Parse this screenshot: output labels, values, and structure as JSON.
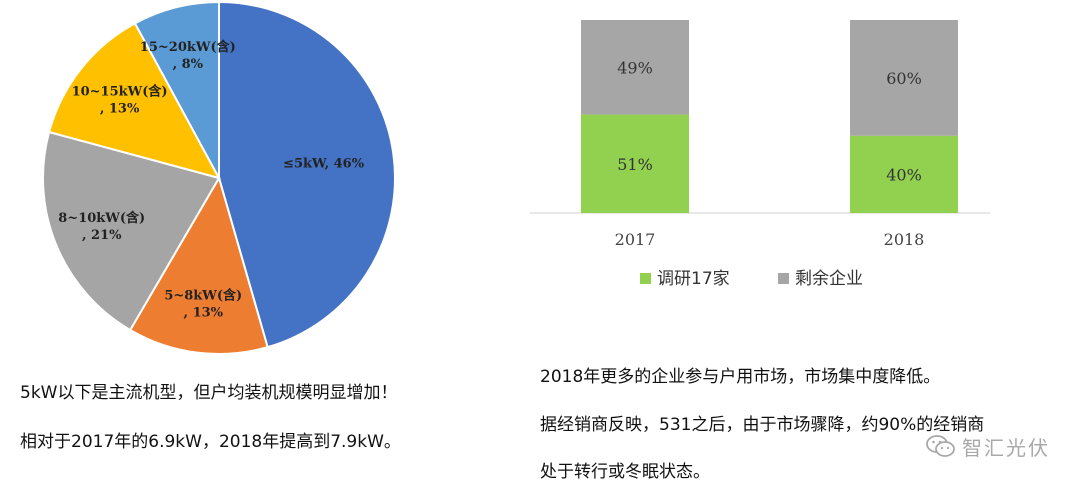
{
  "colors": {
    "blue": "#4472c4",
    "orange": "#ed7d31",
    "gray": "#a5a5a5",
    "yellow": "#ffc000",
    "lightblue": "#5b9bd5",
    "green": "#92d050",
    "bar_gray": "#a6a6a6"
  },
  "chart_data": [
    {
      "type": "pie",
      "slices": [
        {
          "label": "≤5kW, 46%",
          "value": 46,
          "color": "#4472c4"
        },
        {
          "label": "5~8kW(含), 13%",
          "value": 13,
          "color": "#ed7d31"
        },
        {
          "label": "8~10kW(含), 21%",
          "value": 21,
          "color": "#a5a5a5"
        },
        {
          "label": "10~15kW(含), 13%",
          "value": 13,
          "color": "#ffc000"
        },
        {
          "label": "15~20kW(含), 8%",
          "value": 8,
          "color": "#5b9bd5"
        }
      ],
      "label_lines": [
        [
          "≤5kW, 46%"
        ],
        [
          "5~8kW(含)",
          ", 13%"
        ],
        [
          "8~10kW(含)",
          ", 21%"
        ],
        [
          "10~15kW(含)",
          ", 13%"
        ],
        [
          "15~20kW(含)",
          ", 8%"
        ]
      ]
    },
    {
      "type": "bar",
      "stacked": true,
      "categories": [
        "2017",
        "2018"
      ],
      "series": [
        {
          "name": "调研17家",
          "values": [
            51,
            40
          ],
          "labels": [
            "51%",
            "40%"
          ],
          "color": "#92d050"
        },
        {
          "name": "剩余企业",
          "values": [
            49,
            60
          ],
          "labels": [
            "49%",
            "60%"
          ],
          "color": "#a6a6a6"
        }
      ],
      "ylim": [
        0,
        100
      ],
      "legend": "bottom"
    }
  ],
  "captions": {
    "left_line1": "5kW以下是主流机型，但户均装机规模明显增加！",
    "left_line2": "相对于2017年的6.9kW，2018年提高到7.9kW。",
    "right_line1": "2018年更多的企业参与户用市场，市场集中度降低。",
    "right_line2": "据经销商反映，531之后，由于市场骤降，约90%的经销商",
    "right_line3": "处于转行或冬眠状态。"
  },
  "watermark": {
    "text": "智汇光伏",
    "icon": "wechat-icon"
  }
}
